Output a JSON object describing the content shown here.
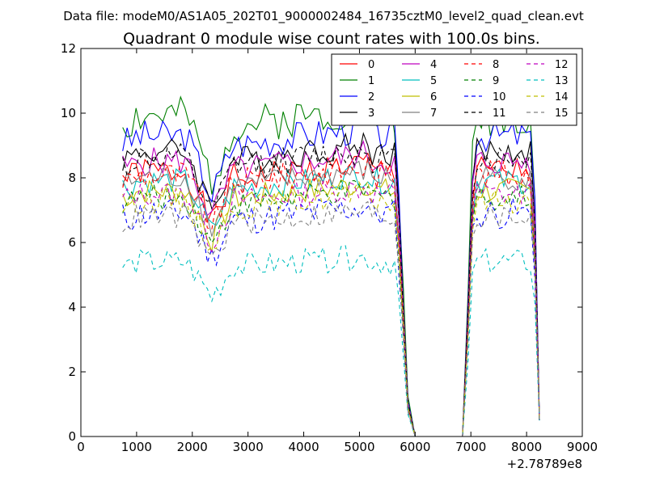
{
  "suptitle": "Data file: modeM0/AS1A05_202T01_9000002484_16735cztM0_level2_quad_clean.evt",
  "chart_data": {
    "type": "line",
    "title": "Quadrant 0 module wise count rates with 100.0s bins.",
    "xlabel": "",
    "ylabel": "",
    "x_offset_label": "+2.78789e8",
    "xlim": [
      0,
      9000
    ],
    "ylim": [
      0,
      12
    ],
    "xticks": [
      0,
      1000,
      2000,
      3000,
      4000,
      5000,
      6000,
      7000,
      8000,
      9000
    ],
    "yticks": [
      0,
      2,
      4,
      6,
      8,
      10,
      12
    ],
    "legend_position": "top-right",
    "legend_columns": 4,
    "segments": [
      {
        "x_start": 750,
        "step": 80,
        "n": 65
      },
      {
        "x_start": 6950,
        "step": 80,
        "n": 17
      }
    ],
    "series": [
      {
        "name": "0",
        "color": "#ff0000",
        "dash": "solid",
        "base": 8.2,
        "noise": 0.45,
        "seed": 1
      },
      {
        "name": "1",
        "color": "#008000",
        "dash": "solid",
        "base": 9.9,
        "noise": 0.6,
        "seed": 2
      },
      {
        "name": "2",
        "color": "#0000ff",
        "dash": "solid",
        "base": 9.3,
        "noise": 0.5,
        "seed": 3
      },
      {
        "name": "3",
        "color": "#000000",
        "dash": "solid",
        "base": 8.8,
        "noise": 0.45,
        "seed": 4
      },
      {
        "name": "4",
        "color": "#bf00bf",
        "dash": "solid",
        "base": 8.5,
        "noise": 0.45,
        "seed": 5
      },
      {
        "name": "5",
        "color": "#00bfbf",
        "dash": "solid",
        "base": 7.9,
        "noise": 0.4,
        "seed": 6
      },
      {
        "name": "6",
        "color": "#bfbf00",
        "dash": "solid",
        "base": 7.6,
        "noise": 0.4,
        "seed": 7
      },
      {
        "name": "7",
        "color": "#808080",
        "dash": "solid",
        "base": 8.0,
        "noise": 0.4,
        "seed": 8
      },
      {
        "name": "8",
        "color": "#ff0000",
        "dash": "dashed",
        "base": 8.1,
        "noise": 0.45,
        "seed": 9
      },
      {
        "name": "9",
        "color": "#008000",
        "dash": "dashed",
        "base": 7.4,
        "noise": 0.4,
        "seed": 10
      },
      {
        "name": "10",
        "color": "#0000ff",
        "dash": "dashed",
        "base": 6.9,
        "noise": 0.5,
        "seed": 11
      },
      {
        "name": "11",
        "color": "#000000",
        "dash": "dashed",
        "base": 8.6,
        "noise": 0.45,
        "seed": 12
      },
      {
        "name": "12",
        "color": "#bf00bf",
        "dash": "dashed",
        "base": 7.5,
        "noise": 0.4,
        "seed": 13
      },
      {
        "name": "13",
        "color": "#00bfbf",
        "dash": "dashed",
        "base": 5.4,
        "noise": 0.4,
        "seed": 14
      },
      {
        "name": "14",
        "color": "#bfbf00",
        "dash": "dashed",
        "base": 7.3,
        "noise": 0.4,
        "seed": 15
      },
      {
        "name": "15",
        "color": "#808080",
        "dash": "dashed",
        "base": 6.8,
        "noise": 0.4,
        "seed": 16
      }
    ]
  }
}
